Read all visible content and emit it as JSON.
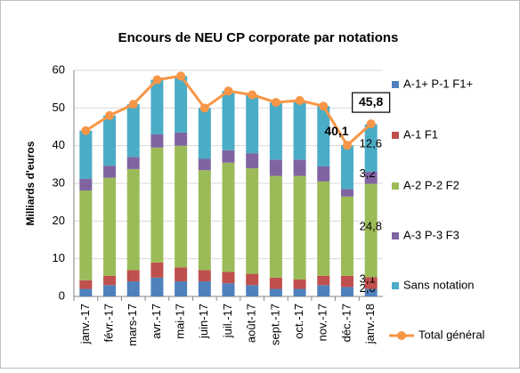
{
  "chart_data": {
    "type": "stacked_bar_line",
    "title": "Encours de NEU CP corporate par notations",
    "y_label": "Milliards d'euros",
    "categories": [
      "janv.-17",
      "févr.-17",
      "mars-17",
      "avr.-17",
      "mai-17",
      "juin-17",
      "juil.-17",
      "août-17",
      "sept.-17",
      "oct.-17",
      "nov.-17",
      "déc.-17",
      "janv.-18"
    ],
    "ylim": [
      0,
      60
    ],
    "yticks": [
      0,
      10,
      20,
      30,
      40,
      50,
      60
    ],
    "grid": true,
    "legend": "right",
    "series": [
      {
        "name": "A-1+ P-1 F1+",
        "color": "#4f81bd",
        "values": [
          2,
          3,
          4,
          5,
          4,
          4,
          3.5,
          3,
          2,
          2,
          3,
          2.5,
          2.0
        ],
        "value_labels": [
          null,
          null,
          null,
          null,
          null,
          null,
          null,
          null,
          null,
          null,
          null,
          null,
          "2,0"
        ]
      },
      {
        "name": "A-1 F1",
        "color": "#c0504d",
        "values": [
          2.3,
          2.5,
          3,
          4,
          3.7,
          3,
          3,
          3,
          3,
          2.5,
          2.5,
          3,
          3.1
        ],
        "value_labels": [
          null,
          null,
          null,
          null,
          null,
          null,
          null,
          null,
          null,
          null,
          null,
          null,
          "3,1"
        ]
      },
      {
        "name": "A-2 P-2 F2",
        "color": "#9bbb59",
        "values": [
          23.8,
          26,
          26.8,
          30.5,
          32.3,
          26.5,
          29,
          28,
          27,
          27.5,
          25,
          21,
          24.8
        ],
        "value_labels": [
          null,
          null,
          null,
          null,
          null,
          null,
          null,
          null,
          null,
          null,
          null,
          null,
          "24,8"
        ]
      },
      {
        "name": "A-3 P-3 F3",
        "color": "#8064a2",
        "values": [
          3.1,
          3.2,
          3.2,
          3.5,
          3.5,
          3,
          3.3,
          4,
          4.3,
          4.3,
          4,
          2,
          3.2
        ],
        "value_labels": [
          null,
          null,
          null,
          null,
          null,
          null,
          null,
          null,
          null,
          null,
          null,
          null,
          "3,2"
        ]
      },
      {
        "name": "Sans notation",
        "color": "#4bacc6",
        "values": [
          12.8,
          13.3,
          14,
          14.5,
          15,
          13.5,
          15.7,
          15.5,
          15.2,
          15.7,
          16,
          11.6,
          12.6
        ],
        "value_labels": [
          null,
          null,
          null,
          null,
          null,
          null,
          null,
          null,
          null,
          null,
          null,
          null,
          "12,6"
        ]
      },
      {
        "name": "Total général",
        "color": "#f79646",
        "kind": "line",
        "values": [
          44,
          48,
          51,
          57.5,
          58.5,
          50,
          54.5,
          53.5,
          51.5,
          52,
          50.5,
          40.1,
          45.8
        ],
        "value_labels": [
          null,
          null,
          null,
          null,
          null,
          null,
          null,
          null,
          null,
          null,
          null,
          "40,1",
          "45,8"
        ]
      }
    ]
  }
}
